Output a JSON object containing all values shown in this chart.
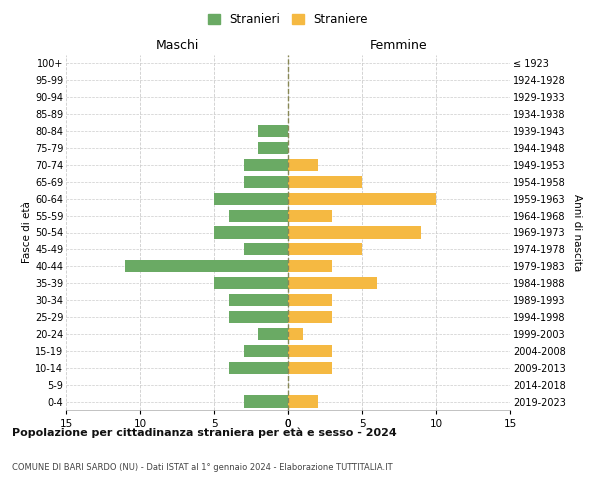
{
  "age_groups": [
    "100+",
    "95-99",
    "90-94",
    "85-89",
    "80-84",
    "75-79",
    "70-74",
    "65-69",
    "60-64",
    "55-59",
    "50-54",
    "45-49",
    "40-44",
    "35-39",
    "30-34",
    "25-29",
    "20-24",
    "15-19",
    "10-14",
    "5-9",
    "0-4"
  ],
  "birth_years": [
    "≤ 1923",
    "1924-1928",
    "1929-1933",
    "1934-1938",
    "1939-1943",
    "1944-1948",
    "1949-1953",
    "1954-1958",
    "1959-1963",
    "1964-1968",
    "1969-1973",
    "1974-1978",
    "1979-1983",
    "1984-1988",
    "1989-1993",
    "1994-1998",
    "1999-2003",
    "2004-2008",
    "2009-2013",
    "2014-2018",
    "2019-2023"
  ],
  "maschi": [
    0,
    0,
    0,
    0,
    2,
    2,
    3,
    3,
    5,
    4,
    5,
    3,
    11,
    5,
    4,
    4,
    2,
    3,
    4,
    0,
    3
  ],
  "femmine": [
    0,
    0,
    0,
    0,
    0,
    0,
    2,
    5,
    10,
    3,
    9,
    5,
    3,
    6,
    3,
    3,
    1,
    3,
    3,
    0,
    2
  ],
  "color_maschi": "#6aaa64",
  "color_femmine": "#f5b942",
  "title_main": "Popolazione per cittadinanza straniera per età e sesso - 2024",
  "title_sub": "COMUNE DI BARI SARDO (NU) - Dati ISTAT al 1° gennaio 2024 - Elaborazione TUTTITALIA.IT",
  "xlabel_left": "Maschi",
  "xlabel_right": "Femmine",
  "ylabel_left": "Fasce di età",
  "ylabel_right": "Anni di nascita",
  "legend_maschi": "Stranieri",
  "legend_femmine": "Straniere",
  "xlim": 15,
  "background_color": "#ffffff",
  "grid_color": "#cccccc"
}
